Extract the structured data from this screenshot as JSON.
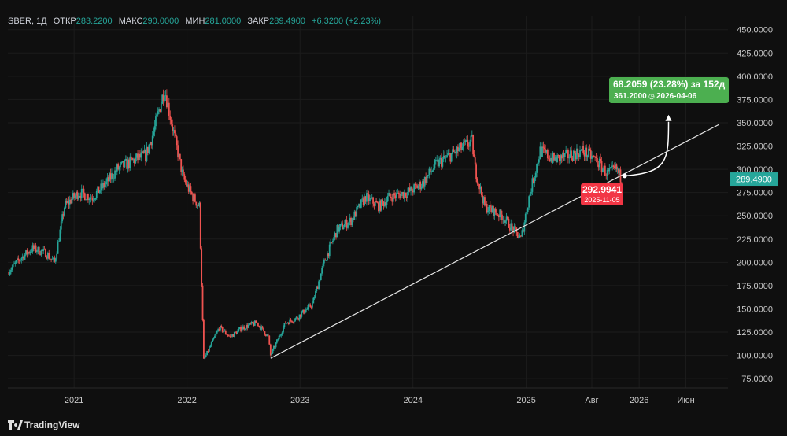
{
  "header": {
    "symbol": "SBER, 1Д",
    "open_label": "ОТКР",
    "open": "283.2200",
    "high_label": "МАКС",
    "high": "290.0000",
    "low_label": "МИН",
    "low": "281.0000",
    "close_label": "ЗАКР",
    "close": "289.4900",
    "change": "+6.3200 (+2.23%)"
  },
  "watermark": "TradingView",
  "last_price_badge": "289.4900",
  "colors": {
    "up": "#26a69a",
    "down": "#ef5350",
    "background": "#0f0f0f",
    "projection_box": "#4caf50",
    "low_box": "#f23645"
  },
  "chart_data": {
    "type": "candlestick",
    "x_ticks": [
      "2021",
      "2022",
      "2023",
      "2024",
      "2025",
      "Авг",
      "2026",
      "Июн"
    ],
    "y_ticks": [
      75,
      100,
      125,
      150,
      175,
      200,
      225,
      250,
      275,
      300,
      325,
      350,
      375,
      400,
      425,
      450
    ],
    "y_tick_labels": [
      "75.0000",
      "100.0000",
      "125.0000",
      "150.0000",
      "175.0000",
      "200.0000",
      "225.0000",
      "250.0000",
      "275.0000",
      "300.0000",
      "325.0000",
      "350.0000",
      "375.0000",
      "400.0000",
      "425.0000",
      "450.0000"
    ],
    "ylim": [
      65,
      465
    ],
    "x_range": [
      "2020-06-01",
      "2026-10-15"
    ],
    "series_path": [
      {
        "date": "2020-06-01",
        "close": 190
      },
      {
        "date": "2020-07-15",
        "close": 205
      },
      {
        "date": "2020-08-20",
        "close": 215
      },
      {
        "date": "2020-10-01",
        "close": 210
      },
      {
        "date": "2020-10-30",
        "close": 200
      },
      {
        "date": "2020-12-01",
        "close": 260
      },
      {
        "date": "2021-01-15",
        "close": 275
      },
      {
        "date": "2021-03-01",
        "close": 270
      },
      {
        "date": "2021-04-15",
        "close": 285
      },
      {
        "date": "2021-05-20",
        "close": 300
      },
      {
        "date": "2021-07-15",
        "close": 310
      },
      {
        "date": "2021-08-20",
        "close": 315
      },
      {
        "date": "2021-09-15",
        "close": 340
      },
      {
        "date": "2021-10-20",
        "close": 387
      },
      {
        "date": "2021-11-15",
        "close": 345
      },
      {
        "date": "2021-12-20",
        "close": 290
      },
      {
        "date": "2022-01-20",
        "close": 270
      },
      {
        "date": "2022-02-10",
        "close": 260
      },
      {
        "date": "2022-02-24",
        "close": 95
      },
      {
        "date": "2022-04-15",
        "close": 130
      },
      {
        "date": "2022-05-20",
        "close": 120
      },
      {
        "date": "2022-07-01",
        "close": 130
      },
      {
        "date": "2022-08-15",
        "close": 135
      },
      {
        "date": "2022-09-20",
        "close": 120
      },
      {
        "date": "2022-09-28",
        "close": 100
      },
      {
        "date": "2022-11-15",
        "close": 135
      },
      {
        "date": "2022-12-20",
        "close": 140
      },
      {
        "date": "2023-02-10",
        "close": 155
      },
      {
        "date": "2023-03-20",
        "close": 200
      },
      {
        "date": "2023-05-01",
        "close": 235
      },
      {
        "date": "2023-06-15",
        "close": 245
      },
      {
        "date": "2023-08-01",
        "close": 270
      },
      {
        "date": "2023-09-15",
        "close": 260
      },
      {
        "date": "2023-10-15",
        "close": 270
      },
      {
        "date": "2023-12-15",
        "close": 275
      },
      {
        "date": "2024-02-01",
        "close": 285
      },
      {
        "date": "2024-03-15",
        "close": 305
      },
      {
        "date": "2024-05-01",
        "close": 315
      },
      {
        "date": "2024-07-10",
        "close": 330
      },
      {
        "date": "2024-07-20",
        "close": 300
      },
      {
        "date": "2024-08-20",
        "close": 260
      },
      {
        "date": "2024-10-15",
        "close": 250
      },
      {
        "date": "2024-12-15",
        "close": 225
      },
      {
        "date": "2025-01-10",
        "close": 270
      },
      {
        "date": "2025-02-15",
        "close": 320
      },
      {
        "date": "2025-04-01",
        "close": 310
      },
      {
        "date": "2025-05-20",
        "close": 315
      },
      {
        "date": "2025-07-01",
        "close": 320
      },
      {
        "date": "2025-08-15",
        "close": 310
      },
      {
        "date": "2025-09-20",
        "close": 295
      },
      {
        "date": "2025-10-20",
        "close": 300
      },
      {
        "date": "2025-11-05",
        "close": 289.49
      }
    ],
    "trendline": {
      "start": {
        "date": "2022-09-28",
        "value": 97
      },
      "end": {
        "date": "2026-09-15",
        "value": 348
      }
    },
    "projection": {
      "from": {
        "date": "2025-11-05",
        "value": 292.9941
      },
      "to": {
        "date": "2026-04-06",
        "value": 361.2
      },
      "label_main": "68.2059 (23.28%) за 152д",
      "label_sub_price": "361.2000",
      "label_sub_date": "2026-04-06",
      "low_label_price": "292.9941",
      "low_label_date": "2025-11-05"
    }
  }
}
